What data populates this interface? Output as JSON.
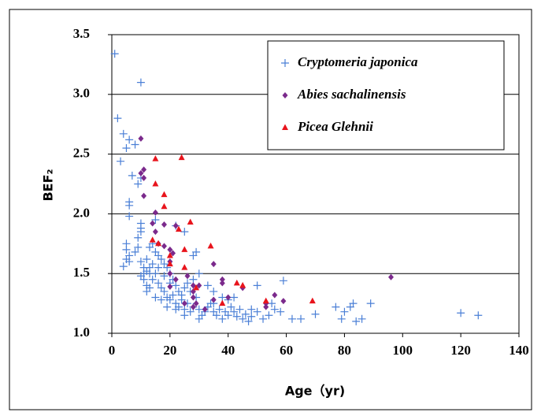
{
  "chart_data": {
    "type": "scatter",
    "x_label": "Age（yr)",
    "y_label": "BEF₂",
    "xlim": [
      0,
      140
    ],
    "xticks": [
      0,
      20,
      40,
      60,
      80,
      100,
      120,
      140
    ],
    "ylim": [
      1.0,
      3.5
    ],
    "yticks": [
      {
        "value": 1.0,
        "label": "1.0"
      },
      1.5,
      {
        "value": 2.0,
        "label": "2.0"
      },
      2.5,
      {
        "value": 3.0,
        "label": "3.0"
      },
      3.5
    ],
    "grid": true,
    "legend": "upper right",
    "series": [
      {
        "name": "Cryptomeria japonica",
        "color": "#4a7fd6",
        "marker": "plus",
        "x": [
          1,
          10,
          2,
          4,
          6,
          3,
          5,
          8,
          7,
          9,
          10,
          6,
          6,
          6,
          10,
          10,
          10,
          9,
          5,
          5,
          6,
          5,
          6,
          4,
          8,
          9,
          10,
          11,
          12,
          13,
          10,
          11,
          12,
          13,
          14,
          15,
          16,
          17,
          18,
          19,
          20,
          21,
          22,
          23,
          24,
          25,
          26,
          27,
          28,
          29,
          30,
          31,
          32,
          33,
          34,
          35,
          36,
          37,
          38,
          39,
          40,
          41,
          42,
          43,
          44,
          45,
          46,
          47,
          48,
          50,
          52,
          54,
          56,
          58,
          59,
          62,
          70,
          77,
          79,
          80,
          82,
          83,
          84,
          86,
          89,
          120,
          126,
          14,
          13,
          15,
          16,
          17,
          18,
          19,
          20,
          21,
          22,
          23,
          24,
          25,
          26,
          27,
          28,
          30,
          33,
          35,
          38,
          40,
          28,
          29,
          22,
          25,
          15,
          12,
          14,
          16,
          18,
          20,
          22,
          25,
          30,
          35,
          42,
          48,
          50,
          55,
          65,
          12,
          15,
          17,
          19,
          11,
          13
        ],
        "values": [
          3.34,
          3.1,
          2.8,
          2.67,
          2.62,
          2.44,
          2.55,
          2.58,
          2.32,
          2.25,
          2.3,
          2.1,
          2.07,
          1.98,
          1.92,
          1.88,
          1.85,
          1.8,
          1.75,
          1.7,
          1.65,
          1.62,
          1.6,
          1.56,
          1.68,
          1.72,
          1.6,
          1.55,
          1.52,
          1.5,
          1.48,
          1.45,
          1.4,
          1.38,
          1.45,
          1.5,
          1.42,
          1.38,
          1.35,
          1.3,
          1.28,
          1.32,
          1.25,
          1.22,
          1.28,
          1.2,
          1.25,
          1.18,
          1.22,
          1.3,
          1.2,
          1.15,
          1.18,
          1.22,
          1.25,
          1.18,
          1.15,
          1.2,
          1.12,
          1.18,
          1.15,
          1.22,
          1.18,
          1.14,
          1.2,
          1.12,
          1.16,
          1.1,
          1.14,
          1.18,
          1.12,
          1.15,
          1.2,
          1.18,
          1.44,
          1.12,
          1.16,
          1.22,
          1.12,
          1.18,
          1.22,
          1.25,
          1.1,
          1.12,
          1.25,
          1.17,
          1.15,
          1.75,
          1.72,
          1.68,
          1.65,
          1.62,
          1.58,
          1.55,
          1.5,
          1.45,
          1.4,
          1.35,
          1.32,
          1.38,
          1.42,
          1.35,
          1.45,
          1.5,
          1.4,
          1.35,
          1.3,
          1.28,
          1.65,
          1.68,
          1.9,
          1.85,
          1.95,
          1.62,
          1.58,
          1.55,
          1.48,
          1.42,
          1.2,
          1.15,
          1.12,
          1.25,
          1.3,
          1.2,
          1.4,
          1.25,
          1.12,
          1.35,
          1.3,
          1.28,
          1.22,
          1.5,
          1.55
        ]
      },
      {
        "name": "Abies sachalinensis",
        "color": "#7b2a8c",
        "marker": "diamond",
        "x": [
          10,
          11,
          10,
          11,
          11,
          15,
          14,
          15,
          18,
          16,
          18,
          20,
          21,
          20,
          22,
          20,
          22,
          25,
          28,
          28,
          28,
          28,
          30,
          32,
          35,
          35,
          38,
          38,
          40,
          45,
          53,
          53,
          56,
          59,
          96,
          20,
          26,
          29
        ],
        "values": [
          2.63,
          2.37,
          2.34,
          2.3,
          2.15,
          2.01,
          1.92,
          1.85,
          1.91,
          1.75,
          1.73,
          1.7,
          1.67,
          1.6,
          1.9,
          1.5,
          1.45,
          1.25,
          1.4,
          1.35,
          1.3,
          1.22,
          1.4,
          1.2,
          1.58,
          1.28,
          1.45,
          1.42,
          1.3,
          1.38,
          1.25,
          1.22,
          1.32,
          1.27,
          1.47,
          1.39,
          1.48,
          1.25
        ]
      },
      {
        "name": "Picea Glehnii",
        "color": "#e8141c",
        "marker": "triangle",
        "x": [
          14,
          15,
          15,
          18,
          18,
          24,
          20,
          23,
          25,
          25,
          27,
          29,
          34,
          38,
          43,
          45,
          53,
          69,
          16,
          20
        ],
        "values": [
          1.78,
          2.46,
          2.25,
          2.16,
          2.06,
          2.47,
          1.58,
          1.87,
          1.7,
          1.55,
          1.93,
          1.38,
          1.73,
          1.25,
          1.42,
          1.4,
          1.27,
          1.27,
          1.75,
          1.65
        ]
      }
    ]
  }
}
